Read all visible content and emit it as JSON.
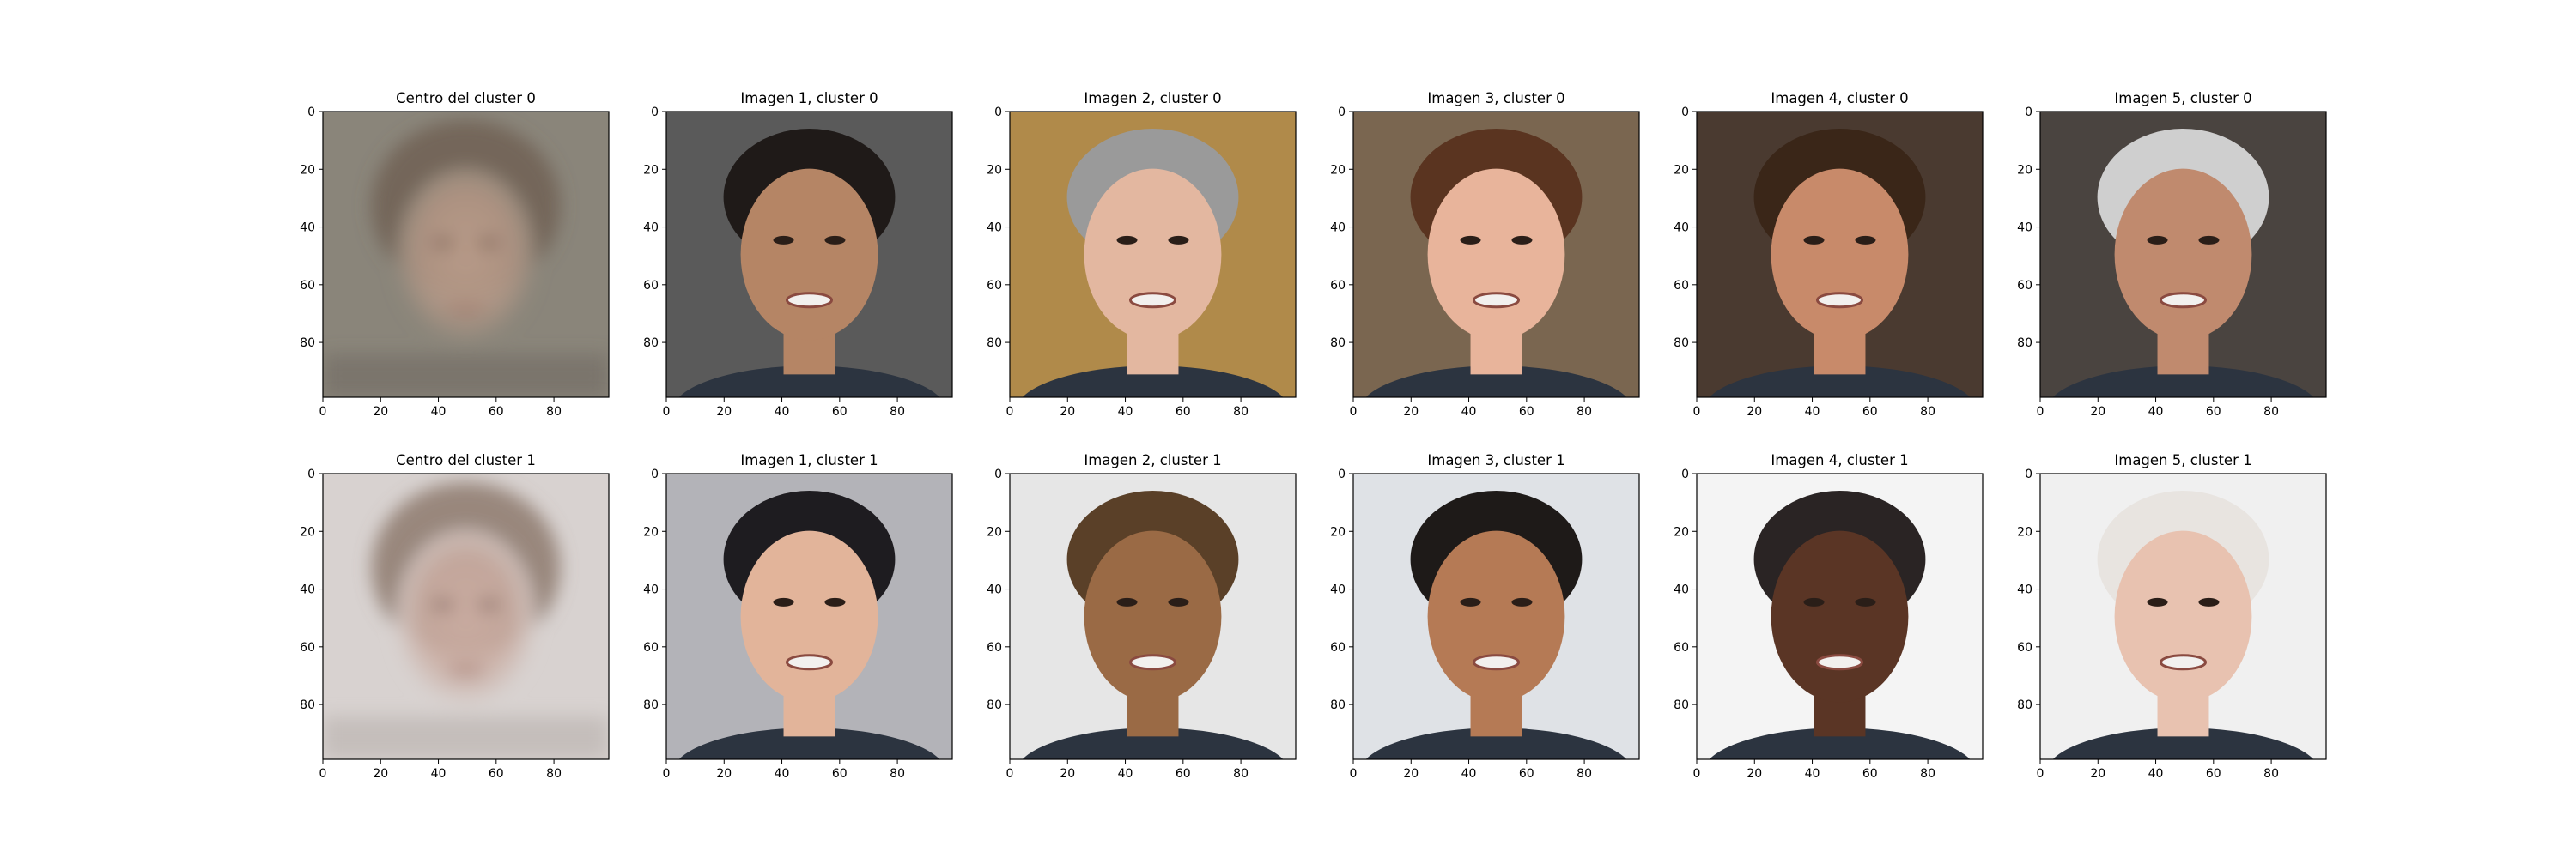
{
  "figure": {
    "rows": [
      {
        "panels": [
          {
            "title": "Centro del cluster 0",
            "kind": "centroid"
          },
          {
            "title": "Imagen 1, cluster 0",
            "kind": "face"
          },
          {
            "title": "Imagen 2, cluster 0",
            "kind": "face"
          },
          {
            "title": "Imagen 3, cluster 0",
            "kind": "face"
          },
          {
            "title": "Imagen 4, cluster 0",
            "kind": "face"
          },
          {
            "title": "Imagen 5, cluster 0",
            "kind": "face"
          }
        ]
      },
      {
        "panels": [
          {
            "title": "Centro del cluster 1",
            "kind": "centroid"
          },
          {
            "title": "Imagen 1, cluster 1",
            "kind": "face"
          },
          {
            "title": "Imagen 2, cluster 1",
            "kind": "face"
          },
          {
            "title": "Imagen 3, cluster 1",
            "kind": "face"
          },
          {
            "title": "Imagen 4, cluster 1",
            "kind": "face"
          },
          {
            "title": "Imagen 5, cluster 1",
            "kind": "face"
          }
        ]
      }
    ]
  },
  "chart_data": {
    "type": "heatmap",
    "grid": [
      2,
      6
    ],
    "xlim": [
      0,
      99
    ],
    "ylim": [
      99,
      0
    ],
    "x_ticks": [
      "0",
      "20",
      "40",
      "60",
      "80"
    ],
    "y_ticks": [
      "0",
      "20",
      "40",
      "60",
      "80"
    ],
    "colors": {
      "centroid_0_bg": "#8a857a",
      "centroid_1_bg": "#d8d2d0",
      "face_bg": [
        [
          "#5a5a5a",
          "#b08a4a",
          "#7a6650",
          "#4a3a30",
          "#4a4440"
        ],
        [
          "#b3b3b8",
          "#e6e6e6",
          "#dfe2e6",
          "#f4f4f4",
          "#f0f0f0"
        ]
      ]
    }
  }
}
